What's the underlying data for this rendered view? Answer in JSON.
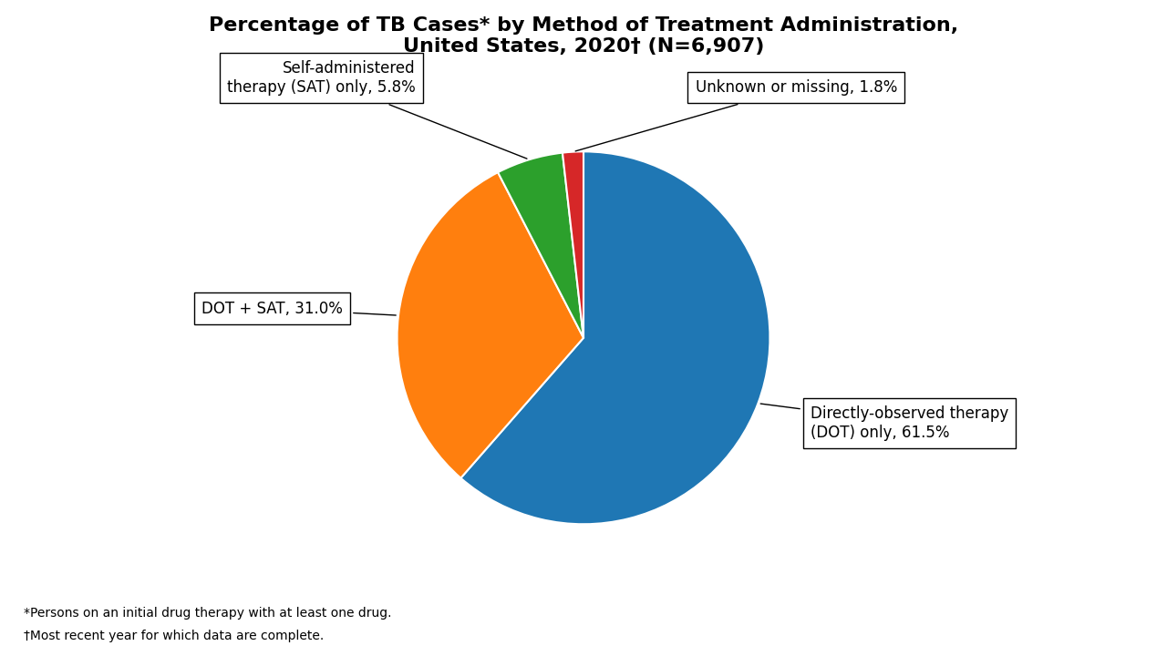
{
  "chart_data": {
    "type": "pie",
    "title": "Percentage of TB Cases* by Method of Treatment Administration,\nUnited States, 2020† (N=6,907)",
    "categories": [
      "Directly-observed therapy\n(DOT) only, 61.5%",
      "DOT + SAT, 31.0%",
      "Self-administered\ntherapy (SAT) only, 5.8%",
      "Unknown or missing, 1.8%"
    ],
    "values": [
      61.5,
      31.0,
      5.8,
      1.8
    ],
    "annotations": [
      "*Persons on an initial drug therapy with at least one drug.",
      "†Most recent year for which data are complete."
    ]
  }
}
